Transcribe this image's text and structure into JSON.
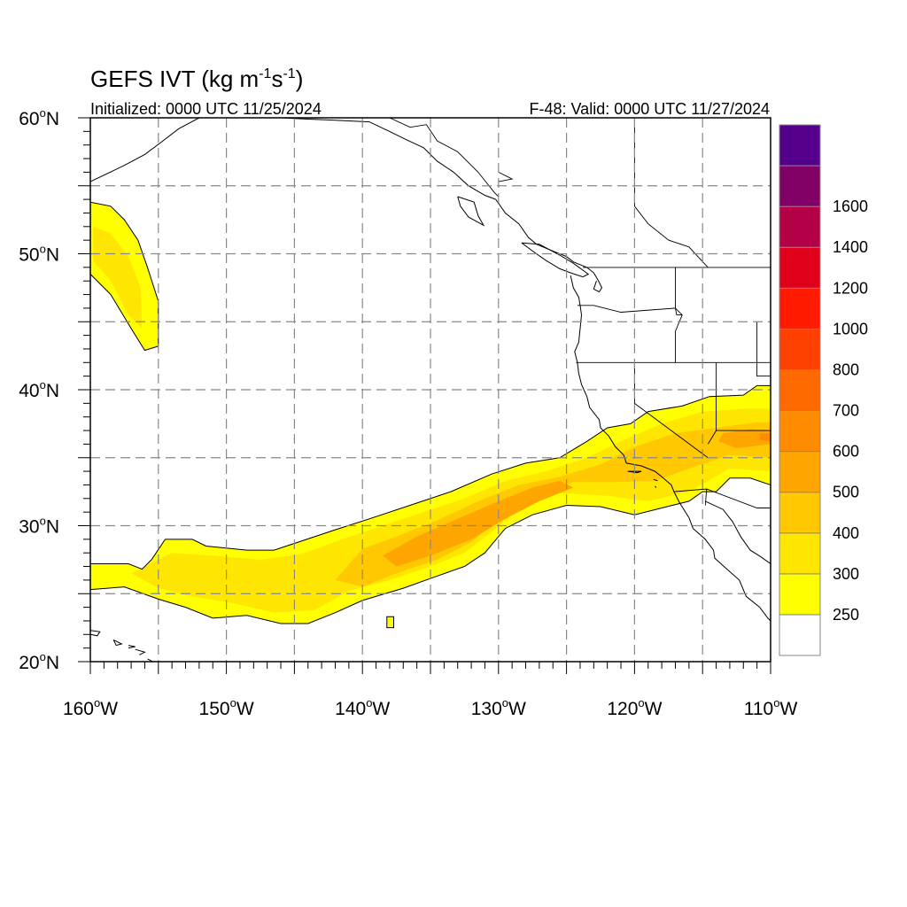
{
  "header": {
    "title_main": "GEFS IVT (kg m",
    "title_sup1": "-1",
    "title_mid": "s",
    "title_sup2": "-1",
    "title_end": ")",
    "initialized": "Initialized: 0000 UTC 11/25/2024",
    "valid": "F-48: Valid: 0000 UTC 11/27/2024"
  },
  "axes": {
    "lat_labels": [
      {
        "lat": 60,
        "text": "60",
        "deg": "o",
        "hemi": "N"
      },
      {
        "lat": 50,
        "text": "50",
        "deg": "o",
        "hemi": "N"
      },
      {
        "lat": 40,
        "text": "40",
        "deg": "o",
        "hemi": "N"
      },
      {
        "lat": 30,
        "text": "30",
        "deg": "o",
        "hemi": "N"
      },
      {
        "lat": 20,
        "text": "20",
        "deg": "o",
        "hemi": "N"
      }
    ],
    "lon_labels": [
      {
        "lon": -160,
        "text": "160",
        "deg": "o",
        "hemi": "W"
      },
      {
        "lon": -150,
        "text": "150",
        "deg": "o",
        "hemi": "W"
      },
      {
        "lon": -140,
        "text": "140",
        "deg": "o",
        "hemi": "W"
      },
      {
        "lon": -130,
        "text": "130",
        "deg": "o",
        "hemi": "W"
      },
      {
        "lon": -120,
        "text": "120",
        "deg": "o",
        "hemi": "W"
      },
      {
        "lon": -110,
        "text": "110",
        "deg": "o",
        "hemi": "W"
      }
    ],
    "lat_range": [
      20,
      60
    ],
    "lon_range": [
      -160,
      -110
    ],
    "grid_lats": [
      25,
      30,
      35,
      40,
      45,
      50,
      55
    ],
    "grid_lons": [
      -155,
      -150,
      -145,
      -140,
      -135,
      -130,
      -125,
      -120,
      -115
    ]
  },
  "colorbar": {
    "levels": [
      {
        "value": "",
        "color": "#ffffff"
      },
      {
        "value": "250",
        "color": "#ffff00"
      },
      {
        "value": "300",
        "color": "#ffe600"
      },
      {
        "value": "400",
        "color": "#ffc800"
      },
      {
        "value": "500",
        "color": "#ffa500"
      },
      {
        "value": "600",
        "color": "#ff8c00"
      },
      {
        "value": "700",
        "color": "#ff6a00"
      },
      {
        "value": "800",
        "color": "#ff4000"
      },
      {
        "value": "1000",
        "color": "#ff1a00"
      },
      {
        "value": "1200",
        "color": "#e0001a"
      },
      {
        "value": "1400",
        "color": "#b40046"
      },
      {
        "value": "1600",
        "color": "#800066"
      },
      {
        "value": "",
        "color": "#55008c"
      }
    ]
  },
  "ivt_regions": [
    {
      "color": "#ffff00",
      "points": [
        [
          -160,
          53.8
        ],
        [
          -158.5,
          53.5
        ],
        [
          -157.5,
          52.5
        ],
        [
          -156.5,
          51
        ],
        [
          -155.8,
          49
        ],
        [
          -155,
          46.5
        ],
        [
          -155,
          43.2
        ],
        [
          -156,
          42.9
        ],
        [
          -157,
          44.5
        ],
        [
          -158.5,
          47
        ],
        [
          -160,
          48.5
        ]
      ]
    },
    {
      "color": "#ffe600",
      "points": [
        [
          -159.8,
          52
        ],
        [
          -158.5,
          51.5
        ],
        [
          -157.2,
          49.8
        ],
        [
          -156.3,
          47.5
        ],
        [
          -156.2,
          44.5
        ],
        [
          -157.2,
          45.5
        ],
        [
          -158.5,
          48
        ],
        [
          -159.8,
          49.5
        ]
      ]
    },
    {
      "color": "#ffff00",
      "points": [
        [
          -160,
          27.2
        ],
        [
          -157.2,
          27.2
        ],
        [
          -156.2,
          26.8
        ],
        [
          -155.5,
          27.5
        ],
        [
          -154.5,
          29
        ],
        [
          -152.5,
          29
        ],
        [
          -151.5,
          28.5
        ],
        [
          -148.5,
          28.2
        ],
        [
          -146.5,
          28.2
        ],
        [
          -145,
          28.7
        ],
        [
          -142,
          29.7
        ],
        [
          -139.5,
          30.5
        ],
        [
          -136.5,
          31.5
        ],
        [
          -133.5,
          32.5
        ],
        [
          -130.5,
          33.8
        ],
        [
          -128,
          34.6
        ],
        [
          -125.5,
          35
        ],
        [
          -123.5,
          36.2
        ],
        [
          -122,
          37.2
        ],
        [
          -120.3,
          37.5
        ],
        [
          -119,
          38.4
        ],
        [
          -116.5,
          38.8
        ],
        [
          -114.5,
          39.5
        ],
        [
          -112,
          39.6
        ],
        [
          -111,
          40.3
        ],
        [
          -110,
          40.3
        ],
        [
          -110,
          33
        ],
        [
          -111.5,
          33.5
        ],
        [
          -113,
          33.5
        ],
        [
          -114,
          32.5
        ],
        [
          -115,
          32.5
        ],
        [
          -116,
          31.8
        ],
        [
          -118,
          31.3
        ],
        [
          -120,
          30.8
        ],
        [
          -122.5,
          31.4
        ],
        [
          -125,
          31.5
        ],
        [
          -127.5,
          30.8
        ],
        [
          -129.5,
          29.8
        ],
        [
          -131,
          28
        ],
        [
          -132.5,
          27
        ],
        [
          -134.5,
          26.3
        ],
        [
          -137,
          25.4
        ],
        [
          -140,
          24.5
        ],
        [
          -142,
          23.6
        ],
        [
          -144,
          22.8
        ],
        [
          -146,
          22.8
        ],
        [
          -148.5,
          23.4
        ],
        [
          -151,
          23.2
        ],
        [
          -153,
          24
        ],
        [
          -155,
          24.6
        ],
        [
          -157.5,
          25.5
        ],
        [
          -160,
          25.3
        ]
      ]
    },
    {
      "color": "#ffe600",
      "points": [
        [
          -157,
          26.5
        ],
        [
          -154,
          28
        ],
        [
          -151,
          27.8
        ],
        [
          -147.5,
          27.5
        ],
        [
          -144.5,
          27.9
        ],
        [
          -141.5,
          29
        ],
        [
          -138.5,
          30
        ],
        [
          -135.5,
          31
        ],
        [
          -132.5,
          32
        ],
        [
          -129.5,
          33.3
        ],
        [
          -126.5,
          34
        ],
        [
          -123.5,
          35
        ],
        [
          -121,
          36.2
        ],
        [
          -118,
          37.5
        ],
        [
          -115,
          38.4
        ],
        [
          -112,
          38.6
        ],
        [
          -110,
          38.6
        ],
        [
          -110,
          34
        ],
        [
          -113,
          34.2
        ],
        [
          -116,
          32.5
        ],
        [
          -119,
          31.8
        ],
        [
          -122,
          32.2
        ],
        [
          -125.5,
          32.4
        ],
        [
          -128.5,
          31.2
        ],
        [
          -130.8,
          29.3
        ],
        [
          -132.5,
          28
        ],
        [
          -135,
          27
        ],
        [
          -138,
          26
        ],
        [
          -141,
          25.2
        ],
        [
          -143.5,
          23.8
        ],
        [
          -146.5,
          23.6
        ],
        [
          -149.5,
          24.3
        ],
        [
          -152.5,
          24.8
        ],
        [
          -155,
          25.4
        ]
      ]
    },
    {
      "color": "#ffc800",
      "points": [
        [
          -142,
          26
        ],
        [
          -140,
          28.3
        ],
        [
          -137.5,
          29.2
        ],
        [
          -134.5,
          30.4
        ],
        [
          -131.5,
          31.8
        ],
        [
          -128.5,
          33
        ],
        [
          -125.5,
          33.6
        ],
        [
          -122.5,
          34.5
        ],
        [
          -120,
          35.8
        ],
        [
          -117,
          36.8
        ],
        [
          -114,
          37.2
        ],
        [
          -111,
          37.6
        ],
        [
          -110,
          37.6
        ],
        [
          -110,
          35
        ],
        [
          -113,
          35.2
        ],
        [
          -116,
          34.2
        ],
        [
          -118.5,
          33.3
        ],
        [
          -121.5,
          33.2
        ],
        [
          -124.5,
          33.2
        ],
        [
          -127.5,
          32.2
        ],
        [
          -130,
          30.5
        ],
        [
          -132,
          28.8
        ],
        [
          -134.5,
          27.5
        ],
        [
          -137.5,
          26.5
        ],
        [
          -140,
          25.5
        ]
      ]
    },
    {
      "color": "#ffa500",
      "points": [
        [
          -138.5,
          27.8
        ],
        [
          -136,
          29.2
        ],
        [
          -133,
          30.5
        ],
        [
          -130,
          31.8
        ],
        [
          -127.5,
          32.8
        ],
        [
          -125.5,
          33.3
        ],
        [
          -124.5,
          32.8
        ],
        [
          -127,
          31.8
        ],
        [
          -129.5,
          30.5
        ],
        [
          -132,
          29
        ],
        [
          -135,
          27.8
        ],
        [
          -137.5,
          27
        ]
      ]
    },
    {
      "color": "#ffa500",
      "points": [
        [
          -113.5,
          36.8
        ],
        [
          -111.5,
          37.1
        ],
        [
          -110,
          37
        ],
        [
          -110,
          36
        ],
        [
          -112.5,
          35.7
        ],
        [
          -113.8,
          36.2
        ]
      ]
    },
    {
      "color": "#ff8c00",
      "points": [
        [
          -110.8,
          36.8
        ],
        [
          -110,
          36.8
        ],
        [
          -110,
          36.2
        ],
        [
          -110.8,
          36.3
        ]
      ]
    },
    {
      "color": "#ffff00",
      "points": [
        [
          -138.2,
          23.3
        ],
        [
          -137.7,
          23.3
        ],
        [
          -137.7,
          22.5
        ],
        [
          -138.2,
          22.5
        ]
      ]
    }
  ],
  "boundaries": [
    [
      [
        -138,
        60
      ],
      [
        -136.5,
        59.3
      ],
      [
        -135.3,
        59.5
      ],
      [
        -134.5,
        58.3
      ],
      [
        -133,
        57.5
      ],
      [
        -131.5,
        56
      ],
      [
        -130.3,
        54.5
      ],
      [
        -130,
        54.2
      ]
    ],
    [
      [
        -123.8,
        49
      ],
      [
        -117,
        49
      ],
      [
        -110,
        49
      ]
    ],
    [
      [
        -124.2,
        46.2
      ],
      [
        -123,
        46.2
      ],
      [
        -121,
        45.7
      ],
      [
        -117,
        46
      ],
      [
        -116.9,
        45.5
      ],
      [
        -116.5,
        45.5
      ]
    ],
    [
      [
        -124.3,
        42
      ],
      [
        -120,
        42
      ],
      [
        -117,
        42
      ],
      [
        -114,
        42
      ],
      [
        -110,
        42
      ]
    ],
    [
      [
        -120,
        42
      ],
      [
        -120,
        39
      ],
      [
        -114.6,
        35
      ]
    ],
    [
      [
        -117,
        49
      ],
      [
        -117,
        46
      ],
      [
        -116.5,
        45.5
      ],
      [
        -117,
        44.3
      ],
      [
        -117,
        42
      ]
    ],
    [
      [
        -114,
        42
      ],
      [
        -114,
        37
      ],
      [
        -114.6,
        36
      ]
    ],
    [
      [
        -114,
        37
      ],
      [
        -110,
        37
      ]
    ],
    [
      [
        -111,
        45
      ],
      [
        -111,
        42
      ],
      [
        -111,
        41
      ],
      [
        -110,
        41
      ]
    ],
    [
      [
        -117.1,
        32.5
      ],
      [
        -114.7,
        32.7
      ],
      [
        -111,
        31.3
      ],
      [
        -110,
        31.3
      ]
    ],
    [
      [
        -114.7,
        32.7
      ],
      [
        -114.8,
        31.5
      ]
    ],
    [
      [
        -120,
        60
      ],
      [
        -120,
        53.5
      ],
      [
        -119,
        52.2
      ],
      [
        -117.5,
        51
      ],
      [
        -116,
        50.5
      ],
      [
        -114.6,
        49
      ]
    ],
    [
      [
        -130,
        56
      ],
      [
        -129,
        55.5
      ],
      [
        -130,
        55.3
      ]
    ]
  ],
  "coastlines": [
    [
      [
        -160,
        55.3
      ],
      [
        -157.5,
        56.5
      ],
      [
        -156,
        57.3
      ],
      [
        -154.8,
        58.2
      ],
      [
        -153.5,
        59.2
      ],
      [
        -152,
        60
      ]
    ],
    [
      [
        -146,
        60
      ],
      [
        -144,
        59.9
      ],
      [
        -141.5,
        59.8
      ],
      [
        -139.5,
        59.7
      ],
      [
        -138,
        59
      ],
      [
        -136.8,
        58.4
      ],
      [
        -135.5,
        57.8
      ],
      [
        -134.5,
        56.8
      ],
      [
        -133.3,
        56
      ],
      [
        -132.2,
        55
      ],
      [
        -131,
        54.3
      ],
      [
        -130.2,
        54
      ]
    ],
    [
      [
        -130.2,
        54
      ],
      [
        -129.5,
        53
      ],
      [
        -128.5,
        52.2
      ],
      [
        -127.8,
        51.2
      ],
      [
        -127.2,
        50.7
      ],
      [
        -126,
        50.2
      ],
      [
        -125,
        49.8
      ],
      [
        -124.5,
        49.4
      ],
      [
        -123.5,
        49
      ],
      [
        -123,
        48.6
      ]
    ],
    [
      [
        -128.3,
        50.8
      ],
      [
        -127.5,
        50.2
      ],
      [
        -126.5,
        49.5
      ],
      [
        -125.5,
        48.9
      ],
      [
        -124.7,
        48.6
      ],
      [
        -123.8,
        48.3
      ],
      [
        -123.4,
        48.5
      ],
      [
        -124.5,
        49.3
      ],
      [
        -125.5,
        49.9
      ],
      [
        -127,
        50.7
      ],
      [
        -128.3,
        50.8
      ]
    ],
    [
      [
        -133,
        54.2
      ],
      [
        -131.8,
        53.8
      ],
      [
        -131.5,
        52.8
      ],
      [
        -131.1,
        52.1
      ],
      [
        -132.2,
        52.7
      ],
      [
        -132.8,
        53.5
      ],
      [
        -133,
        54.2
      ]
    ],
    [
      [
        -124.7,
        48.4
      ],
      [
        -124.5,
        47.5
      ],
      [
        -124.1,
        46.8
      ],
      [
        -124,
        46.2
      ],
      [
        -123.9,
        45.5
      ],
      [
        -124,
        44.5
      ],
      [
        -124.1,
        43.5
      ],
      [
        -124.4,
        42.8
      ],
      [
        -124.2,
        42
      ],
      [
        -124.1,
        41.2
      ],
      [
        -123.9,
        40.4
      ],
      [
        -123.5,
        39.5
      ],
      [
        -123.3,
        38.7
      ],
      [
        -122.6,
        37.8
      ],
      [
        -122.5,
        37.2
      ],
      [
        -121.9,
        36.6
      ],
      [
        -121.4,
        35.8
      ],
      [
        -120.8,
        35.2
      ],
      [
        -120.6,
        34.6
      ],
      [
        -119.5,
        34.4
      ],
      [
        -118.5,
        34
      ],
      [
        -118,
        33.6
      ],
      [
        -117.3,
        33
      ],
      [
        -117.1,
        32.5
      ],
      [
        -116.7,
        31.7
      ],
      [
        -116,
        30.6
      ],
      [
        -115.7,
        29.8
      ],
      [
        -114.8,
        29
      ],
      [
        -114.2,
        28.2
      ],
      [
        -114.1,
        27.6
      ],
      [
        -113.2,
        26.8
      ],
      [
        -112.3,
        26
      ],
      [
        -111.8,
        24.8
      ],
      [
        -110.8,
        24
      ],
      [
        -110.2,
        23.2
      ],
      [
        -110,
        23
      ]
    ],
    [
      [
        -114.8,
        31.8
      ],
      [
        -113.5,
        31.2
      ],
      [
        -112.8,
        30.3
      ],
      [
        -112.2,
        29.2
      ],
      [
        -111.5,
        28.2
      ],
      [
        -110.7,
        27.7
      ],
      [
        -110,
        27.2
      ]
    ],
    [
      [
        -123,
        48.6
      ],
      [
        -122.7,
        48.1
      ],
      [
        -122.4,
        47.5
      ],
      [
        -122.6,
        47.2
      ],
      [
        -123,
        47.4
      ],
      [
        -122.8,
        48
      ]
    ],
    [
      [
        -160,
        22.3
      ],
      [
        -159.3,
        22.2
      ],
      [
        -159.5,
        21.9
      ],
      [
        -160,
        22
      ]
    ],
    [
      [
        -158.3,
        21.6
      ],
      [
        -157.7,
        21.3
      ],
      [
        -158.1,
        21.2
      ],
      [
        -158.3,
        21.6
      ]
    ],
    [
      [
        -157.2,
        21.2
      ],
      [
        -156.7,
        21.1
      ],
      [
        -157.2,
        21
      ]
    ],
    [
      [
        -156.7,
        20.9
      ],
      [
        -156,
        20.7
      ],
      [
        -156.4,
        20.5
      ]
    ],
    [
      [
        -155.8,
        20.2
      ],
      [
        -155,
        19.8
      ],
      [
        -155.5,
        19.2
      ],
      [
        -156,
        19.6
      ]
    ],
    [
      [
        -120.5,
        34
      ],
      [
        -119.5,
        34
      ],
      [
        -119.8,
        33.9
      ],
      [
        -120.5,
        34
      ]
    ],
    [
      [
        -118.6,
        33.4
      ],
      [
        -118.3,
        33.3
      ]
    ],
    [
      [
        -118.5,
        32.9
      ],
      [
        -118.4,
        32.8
      ]
    ]
  ]
}
